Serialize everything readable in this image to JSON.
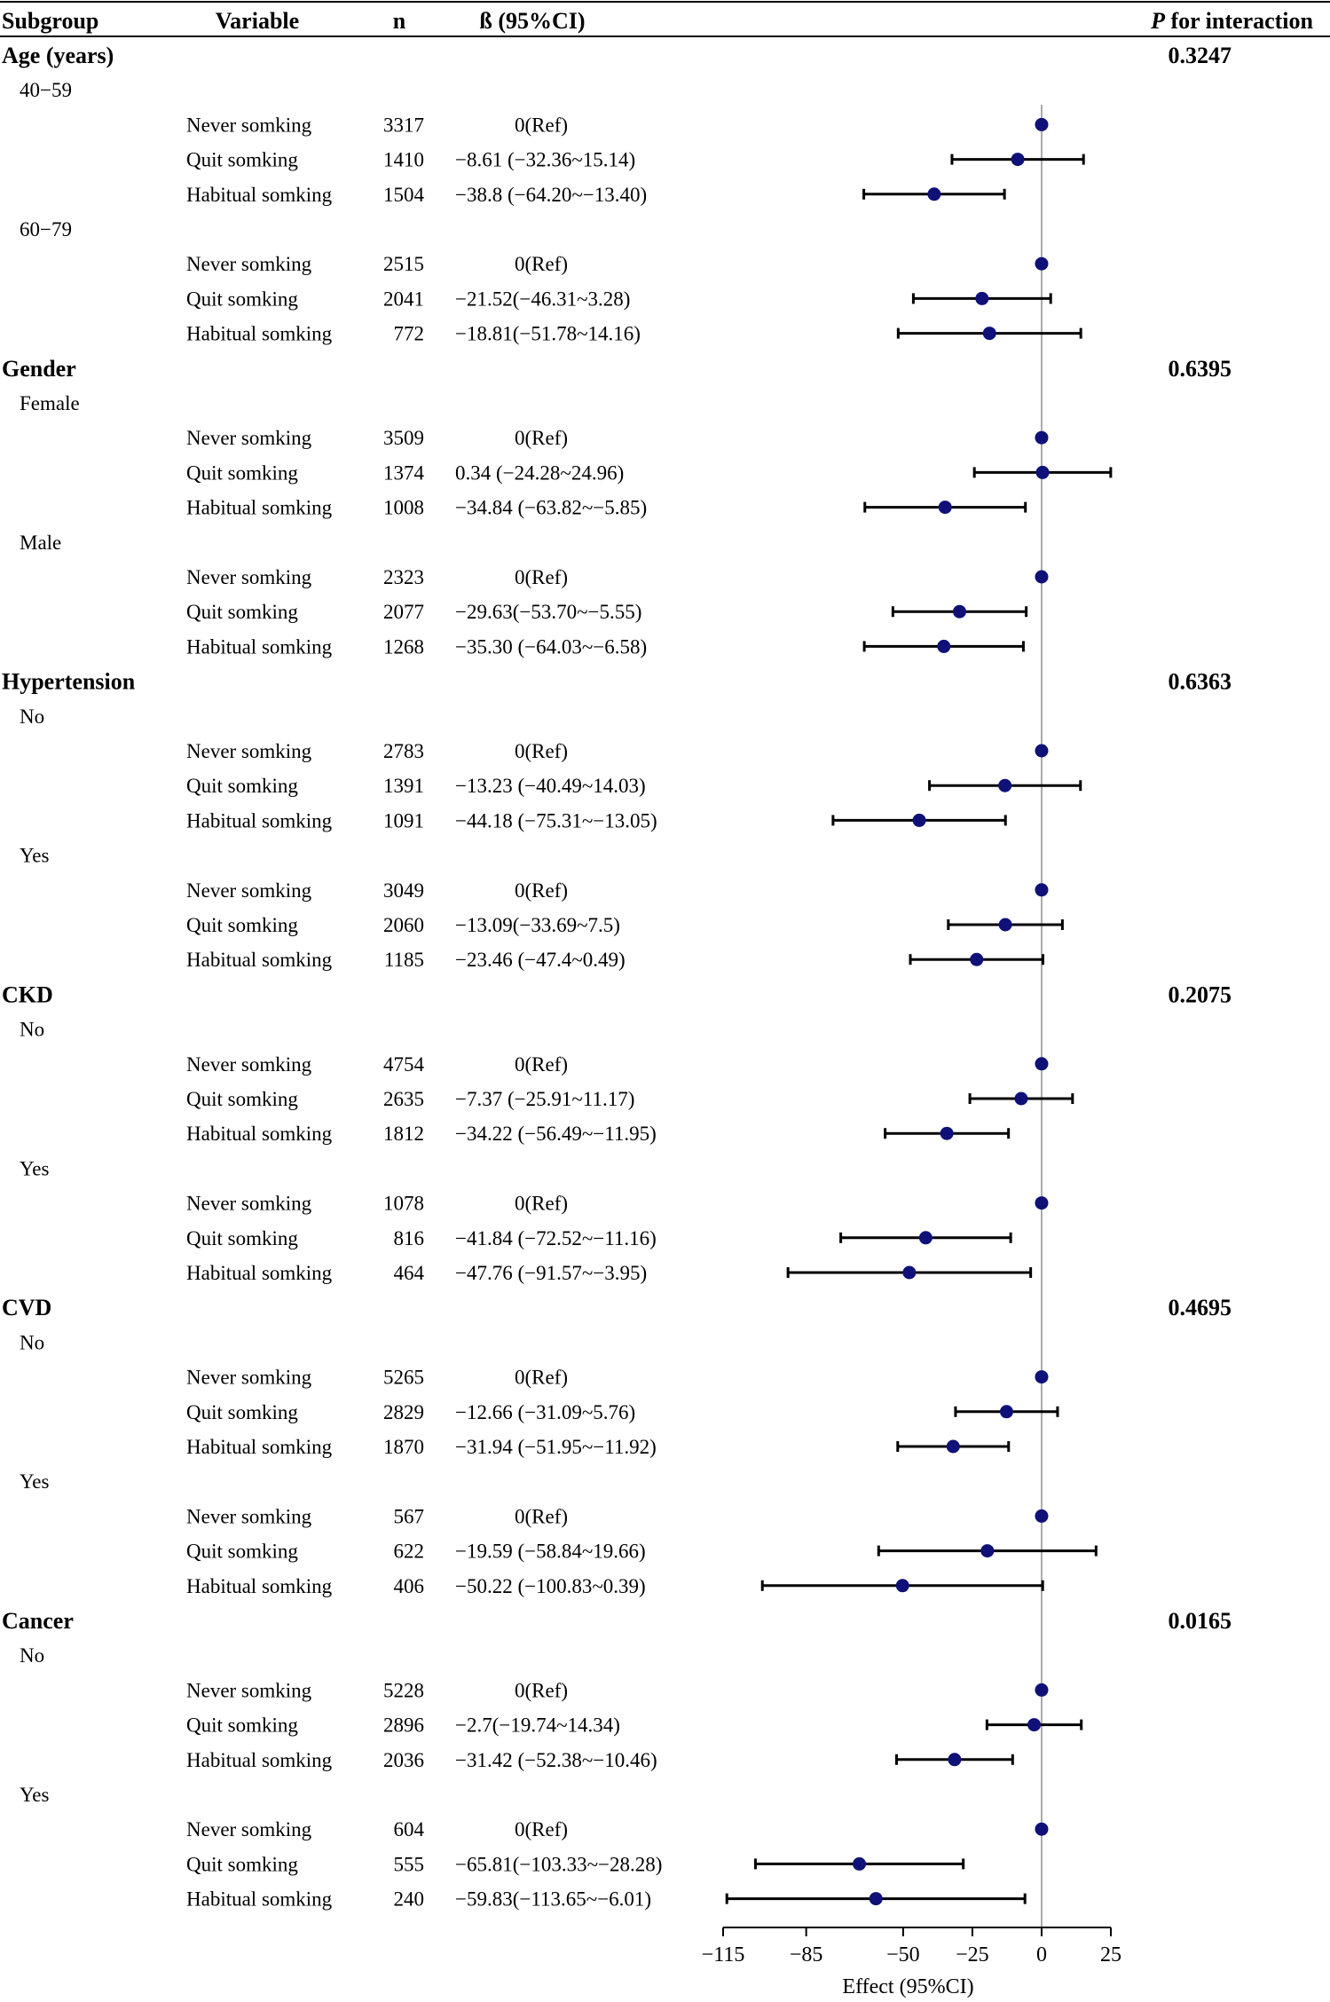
{
  "header": {
    "subgroup": "Subgroup",
    "variable": "Variable",
    "n": "n",
    "beta": "ß (95%CI)",
    "p_prefix": "P",
    "p_suffix": " for interaction"
  },
  "chart_data": {
    "type": "forest",
    "xlabel": "Effect (95%CI)",
    "xlim": [
      -115,
      25
    ],
    "xticks": [
      -115,
      -85,
      -50,
      -25,
      0,
      25
    ],
    "xtick_labels": [
      "−115",
      "−85",
      "−50",
      "−25",
      "0",
      "25"
    ],
    "reference_line": 0,
    "colors": {
      "point": "#0f1178",
      "ci": "#000000",
      "refline": "#aaaaaa"
    },
    "groups": [
      {
        "name": "Age (years)",
        "p": "0.3247",
        "levels": [
          {
            "name": "40−59",
            "rows": [
              {
                "variable": "Never somking",
                "n": "3317",
                "ci_text": "0(Ref)",
                "est": 0,
                "lo": null,
                "hi": null
              },
              {
                "variable": "Quit somking",
                "n": "1410",
                "ci_text": "−8.61 (−32.36~15.14)",
                "est": -8.61,
                "lo": -32.36,
                "hi": 15.14
              },
              {
                "variable": "Habitual somking",
                "n": "1504",
                "ci_text": "−38.8 (−64.20~−13.40)",
                "est": -38.8,
                "lo": -64.2,
                "hi": -13.4
              }
            ]
          },
          {
            "name": "60−79",
            "rows": [
              {
                "variable": "Never somking",
                "n": "2515",
                "ci_text": "0(Ref)",
                "est": 0,
                "lo": null,
                "hi": null
              },
              {
                "variable": "Quit somking",
                "n": "2041",
                "ci_text": "−21.52(−46.31~3.28)",
                "est": -21.52,
                "lo": -46.31,
                "hi": 3.28
              },
              {
                "variable": "Habitual somking",
                "n": "772",
                "ci_text": "−18.81(−51.78~14.16)",
                "est": -18.81,
                "lo": -51.78,
                "hi": 14.16
              }
            ]
          }
        ]
      },
      {
        "name": "Gender",
        "p": "0.6395",
        "levels": [
          {
            "name": "Female",
            "rows": [
              {
                "variable": "Never somking",
                "n": "3509",
                "ci_text": "0(Ref)",
                "est": 0,
                "lo": null,
                "hi": null
              },
              {
                "variable": "Quit somking",
                "n": "1374",
                "ci_text": "0.34 (−24.28~24.96)",
                "est": 0.34,
                "lo": -24.28,
                "hi": 24.96
              },
              {
                "variable": "Habitual somking",
                "n": "1008",
                "ci_text": "−34.84 (−63.82~−5.85)",
                "est": -34.84,
                "lo": -63.82,
                "hi": -5.85
              }
            ]
          },
          {
            "name": "Male",
            "rows": [
              {
                "variable": "Never somking",
                "n": "2323",
                "ci_text": "0(Ref)",
                "est": 0,
                "lo": null,
                "hi": null
              },
              {
                "variable": "Quit somking",
                "n": "2077",
                "ci_text": "−29.63(−53.70~−5.55)",
                "est": -29.63,
                "lo": -53.7,
                "hi": -5.55
              },
              {
                "variable": "Habitual somking",
                "n": "1268",
                "ci_text": "−35.30 (−64.03~−6.58)",
                "est": -35.3,
                "lo": -64.03,
                "hi": -6.58
              }
            ]
          }
        ]
      },
      {
        "name": "Hypertension",
        "p": "0.6363",
        "levels": [
          {
            "name": "No",
            "rows": [
              {
                "variable": "Never somking",
                "n": "2783",
                "ci_text": "0(Ref)",
                "est": 0,
                "lo": null,
                "hi": null
              },
              {
                "variable": "Quit somking",
                "n": "1391",
                "ci_text": "−13.23 (−40.49~14.03)",
                "est": -13.23,
                "lo": -40.49,
                "hi": 14.03
              },
              {
                "variable": "Habitual somking",
                "n": "1091",
                "ci_text": "−44.18 (−75.31~−13.05)",
                "est": -44.18,
                "lo": -75.31,
                "hi": -13.05
              }
            ]
          },
          {
            "name": "Yes",
            "rows": [
              {
                "variable": "Never somking",
                "n": "3049",
                "ci_text": "0(Ref)",
                "est": 0,
                "lo": null,
                "hi": null
              },
              {
                "variable": "Quit somking",
                "n": "2060",
                "ci_text": "−13.09(−33.69~7.5)",
                "est": -13.09,
                "lo": -33.69,
                "hi": 7.5
              },
              {
                "variable": "Habitual somking",
                "n": "1185",
                "ci_text": "−23.46 (−47.4~0.49)",
                "est": -23.46,
                "lo": -47.4,
                "hi": 0.49
              }
            ]
          }
        ]
      },
      {
        "name": "CKD",
        "p": "0.2075",
        "levels": [
          {
            "name": "No",
            "rows": [
              {
                "variable": "Never somking",
                "n": "4754",
                "ci_text": "0(Ref)",
                "est": 0,
                "lo": null,
                "hi": null
              },
              {
                "variable": "Quit somking",
                "n": "2635",
                "ci_text": "−7.37 (−25.91~11.17)",
                "est": -7.37,
                "lo": -25.91,
                "hi": 11.17
              },
              {
                "variable": "Habitual somking",
                "n": "1812",
                "ci_text": "−34.22 (−56.49~−11.95)",
                "est": -34.22,
                "lo": -56.49,
                "hi": -11.95
              }
            ]
          },
          {
            "name": "Yes",
            "rows": [
              {
                "variable": "Never somking",
                "n": "1078",
                "ci_text": "0(Ref)",
                "est": 0,
                "lo": null,
                "hi": null
              },
              {
                "variable": "Quit somking",
                "n": "816",
                "ci_text": "−41.84 (−72.52~−11.16)",
                "est": -41.84,
                "lo": -72.52,
                "hi": -11.16
              },
              {
                "variable": "Habitual somking",
                "n": "464",
                "ci_text": "−47.76 (−91.57~−3.95)",
                "est": -47.76,
                "lo": -91.57,
                "hi": -3.95
              }
            ]
          }
        ]
      },
      {
        "name": "CVD",
        "p": "0.4695",
        "levels": [
          {
            "name": "No",
            "rows": [
              {
                "variable": "Never somking",
                "n": "5265",
                "ci_text": "0(Ref)",
                "est": 0,
                "lo": null,
                "hi": null
              },
              {
                "variable": "Quit somking",
                "n": "2829",
                "ci_text": "−12.66 (−31.09~5.76)",
                "est": -12.66,
                "lo": -31.09,
                "hi": 5.76
              },
              {
                "variable": "Habitual somking",
                "n": "1870",
                "ci_text": "−31.94 (−51.95~−11.92)",
                "est": -31.94,
                "lo": -51.95,
                "hi": -11.92
              }
            ]
          },
          {
            "name": "Yes",
            "rows": [
              {
                "variable": "Never somking",
                "n": "567",
                "ci_text": "0(Ref)",
                "est": 0,
                "lo": null,
                "hi": null
              },
              {
                "variable": "Quit somking",
                "n": "622",
                "ci_text": "−19.59 (−58.84~19.66)",
                "est": -19.59,
                "lo": -58.84,
                "hi": 19.66
              },
              {
                "variable": "Habitual somking",
                "n": "406",
                "ci_text": "−50.22 (−100.83~0.39)",
                "est": -50.22,
                "lo": -100.83,
                "hi": 0.39
              }
            ]
          }
        ]
      },
      {
        "name": "Cancer",
        "p": "0.0165",
        "levels": [
          {
            "name": "No",
            "rows": [
              {
                "variable": "Never somking",
                "n": "5228",
                "ci_text": "0(Ref)",
                "est": 0,
                "lo": null,
                "hi": null
              },
              {
                "variable": "Quit somking",
                "n": "2896",
                "ci_text": "−2.7(−19.74~14.34)",
                "est": -2.7,
                "lo": -19.74,
                "hi": 14.34
              },
              {
                "variable": "Habitual somking",
                "n": "2036",
                "ci_text": "−31.42 (−52.38~−10.46)",
                "est": -31.42,
                "lo": -52.38,
                "hi": -10.46
              }
            ]
          },
          {
            "name": "Yes",
            "rows": [
              {
                "variable": "Never somking",
                "n": "604",
                "ci_text": "0(Ref)",
                "est": 0,
                "lo": null,
                "hi": null
              },
              {
                "variable": "Quit somking",
                "n": "555",
                "ci_text": "−65.81(−103.33~−28.28)",
                "est": -65.81,
                "lo": -103.33,
                "hi": -28.28
              },
              {
                "variable": "Habitual somking",
                "n": "240",
                "ci_text": "−59.83(−113.65~−6.01)",
                "est": -59.83,
                "lo": -113.65,
                "hi": -6.01
              }
            ]
          }
        ]
      }
    ]
  }
}
